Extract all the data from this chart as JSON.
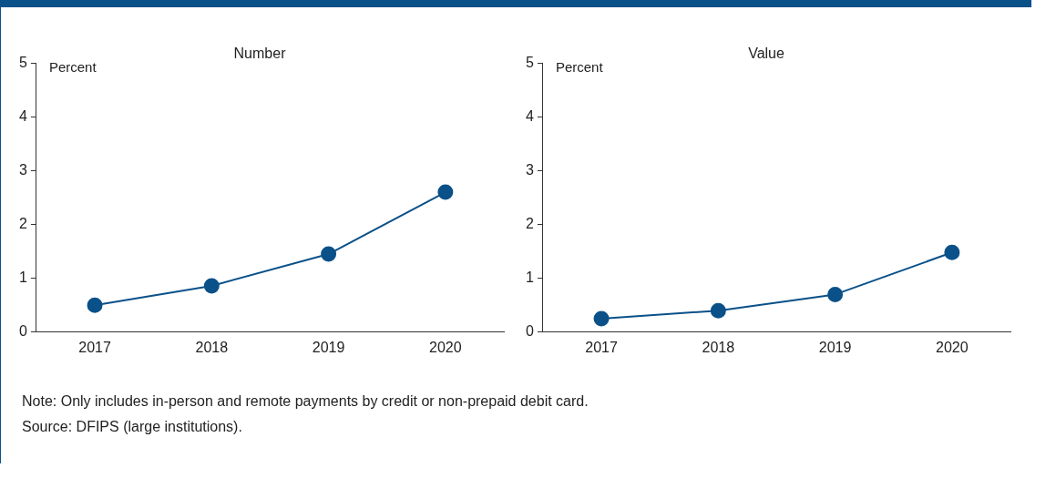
{
  "chart_data": [
    {
      "type": "line",
      "title": "Number",
      "ylabel": "Percent",
      "categories": [
        "2017",
        "2018",
        "2019",
        "2020"
      ],
      "series": [
        {
          "color": "#0a5189",
          "values": [
            0.5,
            0.86,
            1.45,
            2.6
          ]
        }
      ],
      "ylim": [
        0,
        5
      ],
      "yticks": [
        0,
        1,
        2,
        3,
        4,
        5
      ],
      "grid": false,
      "marker": "circle",
      "line_style": "solid"
    },
    {
      "type": "line",
      "title": "Value",
      "ylabel": "Percent",
      "categories": [
        "2017",
        "2018",
        "2019",
        "2020"
      ],
      "series": [
        {
          "color": "#0a5189",
          "values": [
            0.25,
            0.4,
            0.7,
            1.48
          ]
        }
      ],
      "ylim": [
        0,
        5
      ],
      "yticks": [
        0,
        1,
        2,
        3,
        4,
        5
      ],
      "grid": false,
      "marker": "circle",
      "line_style": "solid",
      "annotations": [
        "Note: Only includes in-person and remote payments by credit or non-prepaid debit card.",
        "Source: DFIPS (large institutions)."
      ]
    }
  ]
}
